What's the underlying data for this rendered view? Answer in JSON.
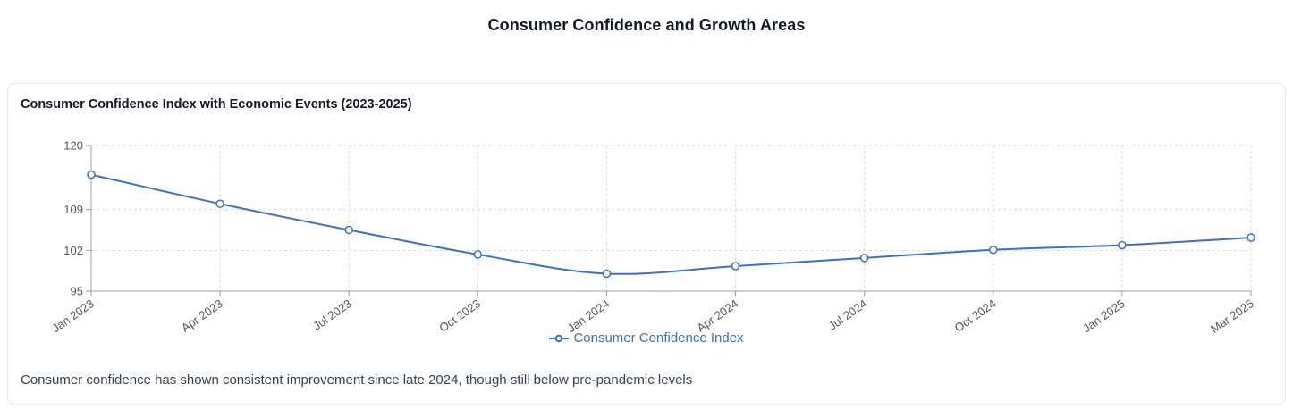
{
  "page": {
    "title": "Consumer Confidence and Growth Areas"
  },
  "card": {
    "subtitle": "Consumer Confidence Index with Economic Events (2023-2025)",
    "footer": "Consumer confidence has shown consistent improvement since late 2024, though still below pre-pandemic levels"
  },
  "legend": {
    "label": "Consumer Confidence Index",
    "icon": "line-with-circle-marker-icon"
  },
  "chart_data": {
    "type": "line",
    "title": "Consumer Confidence Index with Economic Events (2023-2025)",
    "categories": [
      "Jan 2023",
      "Apr 2023",
      "Jul 2023",
      "Oct 2023",
      "Jan 2024",
      "Apr 2024",
      "Jul 2024",
      "Oct 2024",
      "Jan 2025",
      "Mar 2025"
    ],
    "series": [
      {
        "name": "Consumer Confidence Index",
        "values": [
          115.0,
          110.0,
          105.5,
          101.3,
          98.0,
          99.3,
          100.7,
          102.1,
          102.9,
          104.2
        ]
      }
    ],
    "xlabel": "",
    "ylabel": "",
    "ylim": [
      95,
      120
    ],
    "y_ticks": [
      95,
      102,
      109,
      120
    ],
    "grid": true,
    "grid_style": "dashed",
    "legend_position": "bottom",
    "colors": {
      "line": "#3a6ed2",
      "marker_fill": "#ffffff",
      "grid": "#d9d9d9",
      "axis": "#9aa0a6",
      "tick_text": "#555555"
    },
    "marker": "open-circle",
    "x_label_angle": -35
  }
}
